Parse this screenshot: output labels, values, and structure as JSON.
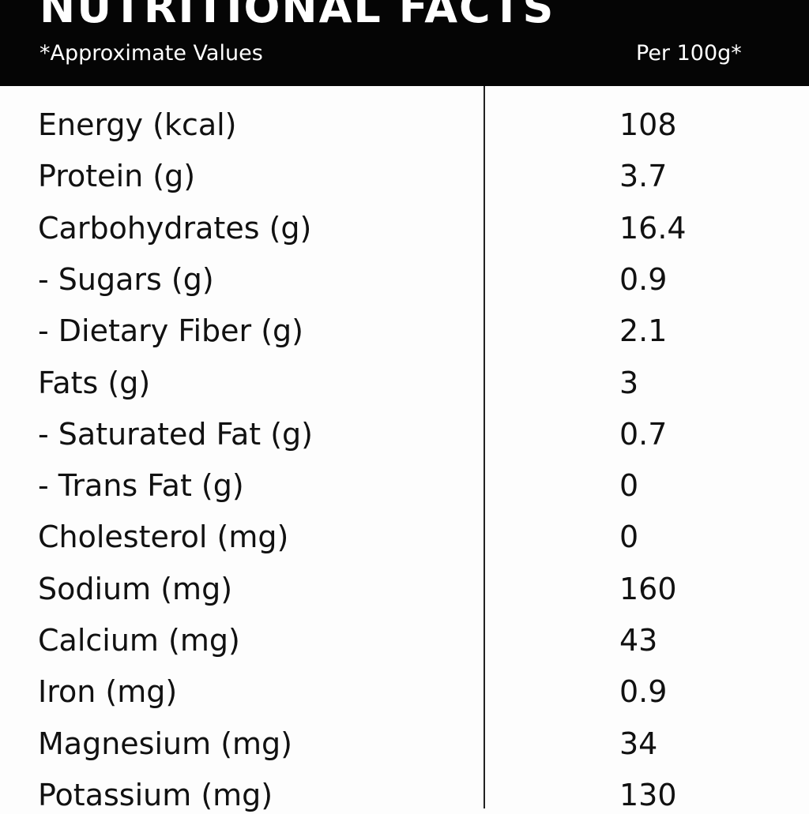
{
  "header": {
    "title": "NUTRITIONAL FACTS",
    "subtitle": "*Approximate Values",
    "per": "Per 100g*"
  },
  "table": {
    "rows": [
      [
        "Energy (kcal)",
        "108"
      ],
      [
        "Protein (g)",
        "3.7"
      ],
      [
        "Carbohydrates (g)",
        "16.4"
      ],
      [
        "- Sugars (g)",
        "0.9"
      ],
      [
        "- Dietary Fiber (g)",
        "2.1"
      ],
      [
        "Fats (g)",
        "3"
      ],
      [
        "- Saturated Fat (g)",
        "0.7"
      ],
      [
        "- Trans Fat (g)",
        "0"
      ],
      [
        "Cholesterol (mg)",
        "0"
      ],
      [
        "Sodium (mg)",
        "160"
      ],
      [
        "Calcium (mg)",
        "43"
      ],
      [
        "Iron (mg)",
        "0.9"
      ],
      [
        "Magnesium (mg)",
        "34"
      ],
      [
        "Potassium (mg)",
        "130"
      ]
    ]
  }
}
